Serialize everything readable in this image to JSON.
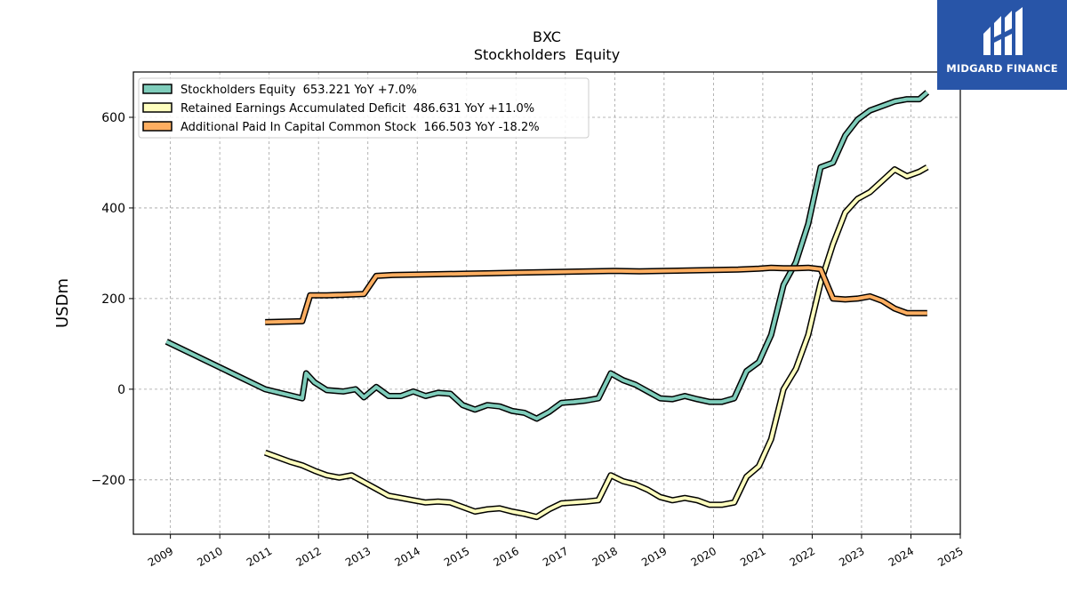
{
  "chart_data": {
    "type": "line",
    "title": "BXC",
    "subtitle": "Stockholders  Equity",
    "ylabel": "USDm",
    "xlim": [
      2008.25,
      2025.0
    ],
    "ylim": [
      -320,
      700
    ],
    "yticks": [
      -200,
      0,
      200,
      400,
      600
    ],
    "ytick_labels": [
      "−200",
      "0",
      "200",
      "400",
      "600"
    ],
    "xticks": [
      2009,
      2010,
      2011,
      2012,
      2013,
      2014,
      2015,
      2016,
      2017,
      2018,
      2019,
      2020,
      2021,
      2022,
      2023,
      2024,
      2025
    ],
    "xtick_labels": [
      "2009",
      "2010",
      "2011",
      "2012",
      "2013",
      "2014",
      "2015",
      "2016",
      "2017",
      "2018",
      "2019",
      "2020",
      "2021",
      "2022",
      "2023",
      "2024",
      "2025"
    ],
    "grid": true,
    "legend_position": "top-left",
    "series": [
      {
        "name": "Stockholders Equity  653.221 YoY +7.0%",
        "color": "#7fcdbb",
        "x": [
          2008.92,
          2010.92,
          2011.67,
          2011.75,
          2011.92,
          2012.17,
          2012.5,
          2012.75,
          2012.92,
          2013.17,
          2013.42,
          2013.67,
          2013.92,
          2014.17,
          2014.42,
          2014.67,
          2014.92,
          2015.17,
          2015.42,
          2015.67,
          2015.92,
          2016.17,
          2016.42,
          2016.67,
          2016.92,
          2017.17,
          2017.42,
          2017.67,
          2017.92,
          2018.17,
          2018.42,
          2018.67,
          2018.92,
          2019.17,
          2019.42,
          2019.67,
          2019.92,
          2020.17,
          2020.42,
          2020.67,
          2020.92,
          2021.17,
          2021.42,
          2021.67,
          2021.92,
          2022.17,
          2022.42,
          2022.67,
          2022.92,
          2023.17,
          2023.42,
          2023.67,
          2023.92,
          2024.17,
          2024.33
        ],
        "y": [
          105,
          0,
          -20,
          35,
          15,
          -2,
          -5,
          0,
          -18,
          5,
          -15,
          -15,
          -5,
          -15,
          -8,
          -10,
          -35,
          -45,
          -35,
          -38,
          -48,
          -52,
          -65,
          -50,
          -30,
          -28,
          -25,
          -20,
          35,
          20,
          10,
          -5,
          -20,
          -22,
          -15,
          -22,
          -28,
          -28,
          -20,
          40,
          60,
          120,
          230,
          280,
          365,
          490,
          500,
          560,
          595,
          615,
          625,
          635,
          640,
          640,
          655
        ]
      },
      {
        "name": "Retained Earnings Accumulated Deficit  486.631 YoY +11.0%",
        "color": "#ffffbf",
        "x": [
          2010.92,
          2011.42,
          2011.67,
          2011.92,
          2012.17,
          2012.42,
          2012.67,
          2012.92,
          2013.17,
          2013.42,
          2013.67,
          2013.92,
          2014.17,
          2014.42,
          2014.67,
          2014.92,
          2015.17,
          2015.42,
          2015.67,
          2015.92,
          2016.17,
          2016.42,
          2016.67,
          2016.92,
          2017.17,
          2017.42,
          2017.67,
          2017.92,
          2018.17,
          2018.42,
          2018.67,
          2018.92,
          2019.17,
          2019.42,
          2019.67,
          2019.92,
          2020.17,
          2020.42,
          2020.67,
          2020.92,
          2021.17,
          2021.42,
          2021.67,
          2021.92,
          2022.17,
          2022.42,
          2022.67,
          2022.92,
          2023.17,
          2023.42,
          2023.67,
          2023.92,
          2024.17,
          2024.33
        ],
        "y": [
          -140,
          -160,
          -168,
          -180,
          -190,
          -195,
          -190,
          -205,
          -220,
          -235,
          -240,
          -245,
          -250,
          -248,
          -250,
          -260,
          -270,
          -265,
          -263,
          -270,
          -275,
          -282,
          -265,
          -252,
          -250,
          -248,
          -245,
          -190,
          -203,
          -210,
          -222,
          -238,
          -245,
          -240,
          -245,
          -255,
          -255,
          -250,
          -193,
          -170,
          -110,
          0,
          45,
          120,
          235,
          320,
          390,
          420,
          435,
          460,
          485,
          470,
          480,
          490
        ]
      },
      {
        "name": "Additional Paid In Capital Common Stock  166.503 YoY -18.2%",
        "color": "#fdae61",
        "x": [
          2010.92,
          2011.67,
          2011.83,
          2012.17,
          2012.92,
          2013.17,
          2013.5,
          2014.0,
          2014.5,
          2015.0,
          2015.5,
          2016.0,
          2016.5,
          2017.0,
          2017.5,
          2018.0,
          2018.5,
          2019.0,
          2019.5,
          2020.0,
          2020.5,
          2020.92,
          2021.17,
          2021.42,
          2021.67,
          2021.92,
          2022.17,
          2022.42,
          2022.67,
          2022.92,
          2023.17,
          2023.42,
          2023.67,
          2023.92,
          2024.17,
          2024.33
        ],
        "y": [
          148,
          150,
          207,
          207,
          210,
          250,
          252,
          253,
          254,
          255,
          256,
          257,
          258,
          259,
          260,
          261,
          260,
          261,
          262,
          263,
          264,
          266,
          268,
          267,
          267,
          268,
          265,
          200,
          198,
          200,
          205,
          195,
          178,
          168,
          168,
          168
        ]
      }
    ]
  },
  "logo": {
    "name": "MIDGARD FINANCE"
  }
}
